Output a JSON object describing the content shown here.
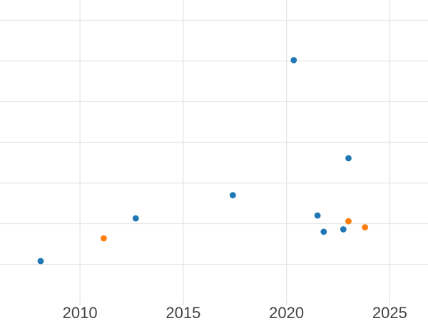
{
  "chart_data": {
    "type": "scatter",
    "title": "",
    "xlabel": "",
    "ylabel": "",
    "x_ticks": [
      2010,
      2015,
      2020,
      2025
    ],
    "x_tick_labels": [
      "2010",
      "2015",
      "2020",
      "2025"
    ],
    "y_tick_labels_visible": false,
    "y_note": "y-axis tick labels are cropped out of view; y values expressed in gridline units (one unit per horizontal gridline)",
    "y_gridline_values": [
      1,
      2,
      3,
      4,
      5,
      6,
      7
    ],
    "xlim": [
      2006.13,
      2026.85
    ],
    "ylim": [
      0.08,
      7.5
    ],
    "grid": true,
    "legend_position": "none",
    "marker": {
      "shape": "circle",
      "radius_px": 4.4
    },
    "series": [
      {
        "name": "series-blue",
        "color": "#1f77b4",
        "points": [
          [
            2008.1,
            1.08
          ],
          [
            2012.7,
            2.13
          ],
          [
            2017.4,
            2.7
          ],
          [
            2020.35,
            6.02
          ],
          [
            2021.5,
            2.2
          ],
          [
            2021.8,
            1.8
          ],
          [
            2022.75,
            1.86
          ],
          [
            2023.0,
            3.61
          ]
        ]
      },
      {
        "name": "series-orange",
        "color": "#ff7f0e",
        "points": [
          [
            2011.15,
            1.64
          ],
          [
            2023.0,
            2.06
          ],
          [
            2023.8,
            1.91
          ]
        ]
      }
    ],
    "colors": {
      "background": "#ffffff",
      "gridline": "#e6e6e6",
      "tick": "#d9d9d9",
      "tick_label": "#424242"
    },
    "tick_label_font_size_px": 22
  }
}
